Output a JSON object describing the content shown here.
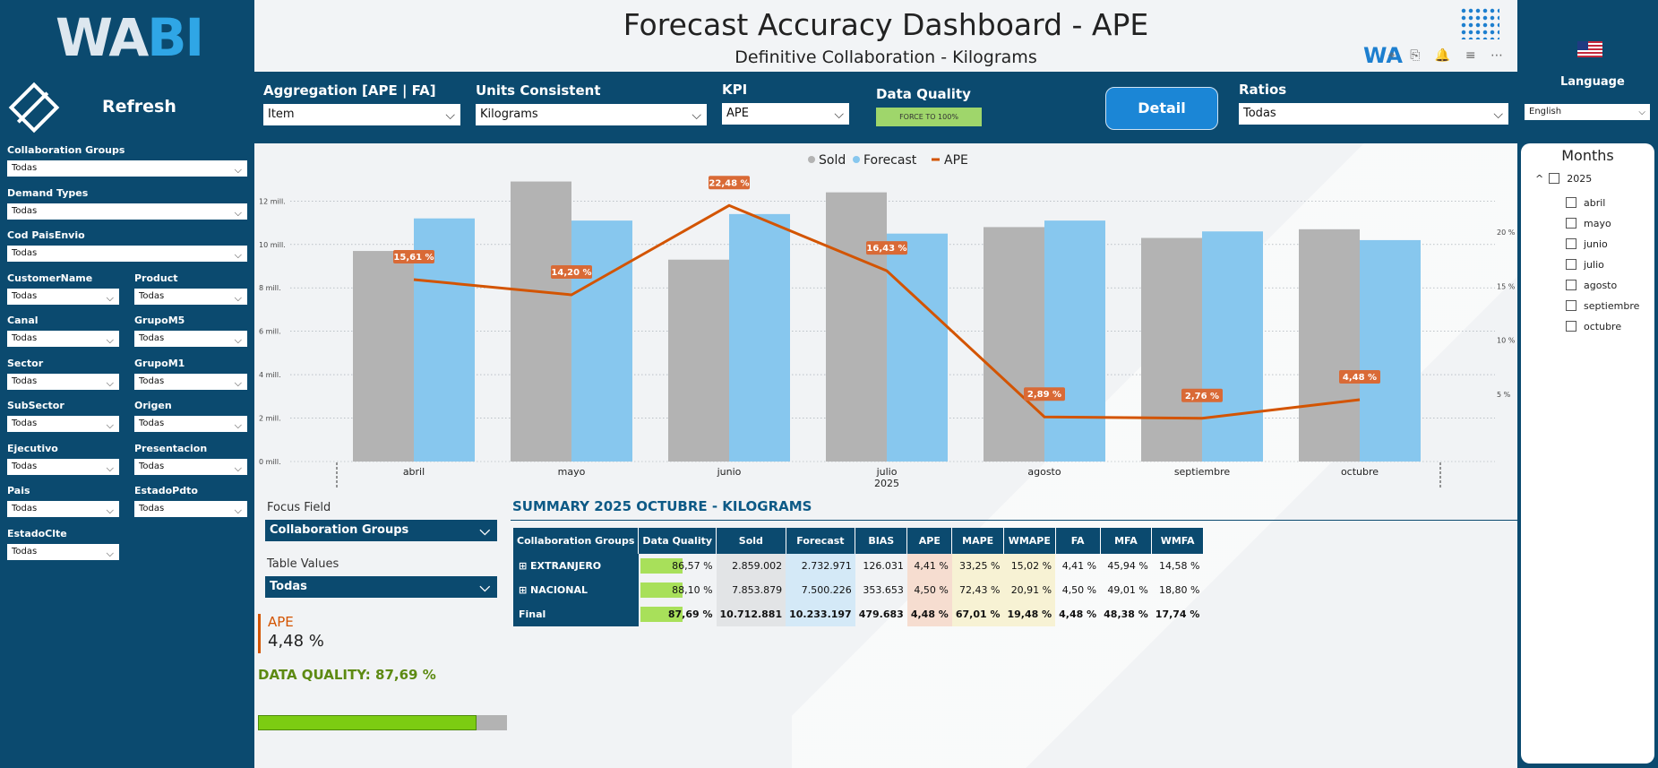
{
  "sidebar": {
    "logo_wa": "WA",
    "logo_bi": "BI",
    "refresh_label": "Refresh",
    "filters": [
      {
        "label": "Collaboration Groups",
        "value": "Todas"
      },
      {
        "label": "Demand Types",
        "value": "Todas"
      },
      {
        "label": "Cod PaisEnvio",
        "value": "Todas"
      },
      {
        "label": "CustomerName",
        "value": "Todas"
      },
      {
        "label": "Product",
        "value": "Todas"
      },
      {
        "label": "Canal",
        "value": "Todas"
      },
      {
        "label": "GrupoM5",
        "value": "Todas"
      },
      {
        "label": "Sector",
        "value": "Todas"
      },
      {
        "label": "GrupoM1",
        "value": "Todas"
      },
      {
        "label": "SubSector",
        "value": "Todas"
      },
      {
        "label": "Origen",
        "value": "Todas"
      },
      {
        "label": "Ejecutivo",
        "value": "Todas"
      },
      {
        "label": "Presentacion",
        "value": "Todas"
      },
      {
        "label": "Pais",
        "value": "Todas"
      },
      {
        "label": "EstadoPdto",
        "value": "Todas"
      },
      {
        "label": "EstadoClte",
        "value": "Todas"
      }
    ]
  },
  "header": {
    "title": "Forecast Accuracy Dashboard - APE",
    "subtitle": "Definitive Collaboration - Kilograms",
    "wa_mini": "WA",
    "tool_icons": "⌖ ⎘ 🔔 ≡ ⋯"
  },
  "language": {
    "label": "Language",
    "value": "English"
  },
  "controls": {
    "aggregation": {
      "label": "Aggregation [APE | FA]",
      "value": "Item"
    },
    "units": {
      "label": "Units Consistent",
      "value": "Kilograms"
    },
    "kpi": {
      "label": "KPI",
      "value": "APE"
    },
    "data_quality": {
      "label": "Data Quality",
      "badge": "FORCE TO 100%"
    },
    "detail_button": "Detail",
    "ratios": {
      "label": "Ratios",
      "value": "Todas"
    }
  },
  "chart_data": {
    "type": "bar",
    "legend": [
      "Sold",
      "Forecast",
      "APE"
    ],
    "categories": [
      "abril",
      "mayo",
      "junio",
      "julio",
      "agosto",
      "septiembre",
      "octubre"
    ],
    "x_year_label": "2025",
    "series": [
      {
        "name": "Sold",
        "values": [
          9.7,
          12.9,
          9.3,
          12.4,
          10.8,
          10.3,
          10.7
        ],
        "color": "#b3b3b3"
      },
      {
        "name": "Forecast",
        "values": [
          11.2,
          11.1,
          11.4,
          10.5,
          11.1,
          10.6,
          10.2
        ],
        "color": "#87c7ee"
      }
    ],
    "line_series": {
      "name": "APE",
      "values": [
        15.61,
        14.2,
        22.48,
        16.43,
        2.89,
        2.76,
        4.48
      ],
      "labels": [
        "15,61 %",
        "14,20 %",
        "22,48 %",
        "16,43 %",
        "2,89 %",
        "2,76 %",
        "4,48 %"
      ],
      "color": "#d35400"
    },
    "y_left_ticks": [
      "0 mill.",
      "2 mill.",
      "4 mill.",
      "6 mill.",
      "8 mill.",
      "10 mill.",
      "12 mill."
    ],
    "y_left_range": [
      0,
      12
    ],
    "y_right_ticks": [
      "5 %",
      "10 %",
      "15 %",
      "20 %"
    ],
    "y_right_range": [
      0,
      20
    ]
  },
  "focus_field": {
    "label": "Focus Field",
    "value": "Collaboration Groups"
  },
  "table_values": {
    "label": "Table Values",
    "value": "Todas"
  },
  "ape_card": {
    "label": "APE",
    "value": "4,48 %"
  },
  "data_quality_text": "DATA QUALITY: 87,69 %",
  "data_quality_pct": 87.69,
  "summary": {
    "title": "SUMMARY 2025 OCTUBRE - KILOGRAMS",
    "columns": [
      "Collaboration Groups",
      "Data Quality",
      "Sold",
      "Forecast",
      "BIAS",
      "APE",
      "MAPE",
      "WMAPE",
      "FA",
      "MFA",
      "WMFA"
    ],
    "rows": [
      {
        "group": "EXTRANJERO",
        "expand": "⊞",
        "dq": "86,57 %",
        "dq_pct": 86.57,
        "sold": "2.859.002",
        "forecast": "2.732.971",
        "bias": "126.031",
        "ape": "4,41 %",
        "mape": "33,25 %",
        "wmape": "15,02 %",
        "fa": "4,41 %",
        "mfa": "45,94 %",
        "wmfa": "14,58 %"
      },
      {
        "group": "NACIONAL",
        "expand": "⊞",
        "dq": "88,10 %",
        "dq_pct": 88.1,
        "sold": "7.853.879",
        "forecast": "7.500.226",
        "bias": "353.653",
        "ape": "4,50 %",
        "mape": "72,43 %",
        "wmape": "20,91 %",
        "fa": "4,50 %",
        "mfa": "49,01 %",
        "wmfa": "18,80 %"
      },
      {
        "group": "Final",
        "expand": "",
        "dq": "87,69 %",
        "dq_pct": 87.69,
        "sold": "10.712.881",
        "forecast": "10.233.197",
        "bias": "479.683",
        "ape": "4,48 %",
        "mape": "67,01 %",
        "wmape": "19,48 %",
        "fa": "4,48 %",
        "mfa": "48,38 %",
        "wmfa": "17,74 %"
      }
    ]
  },
  "months": {
    "title": "Months",
    "year": "2025",
    "items": [
      "abril",
      "mayo",
      "junio",
      "julio",
      "agosto",
      "septiembre",
      "octubre"
    ]
  }
}
